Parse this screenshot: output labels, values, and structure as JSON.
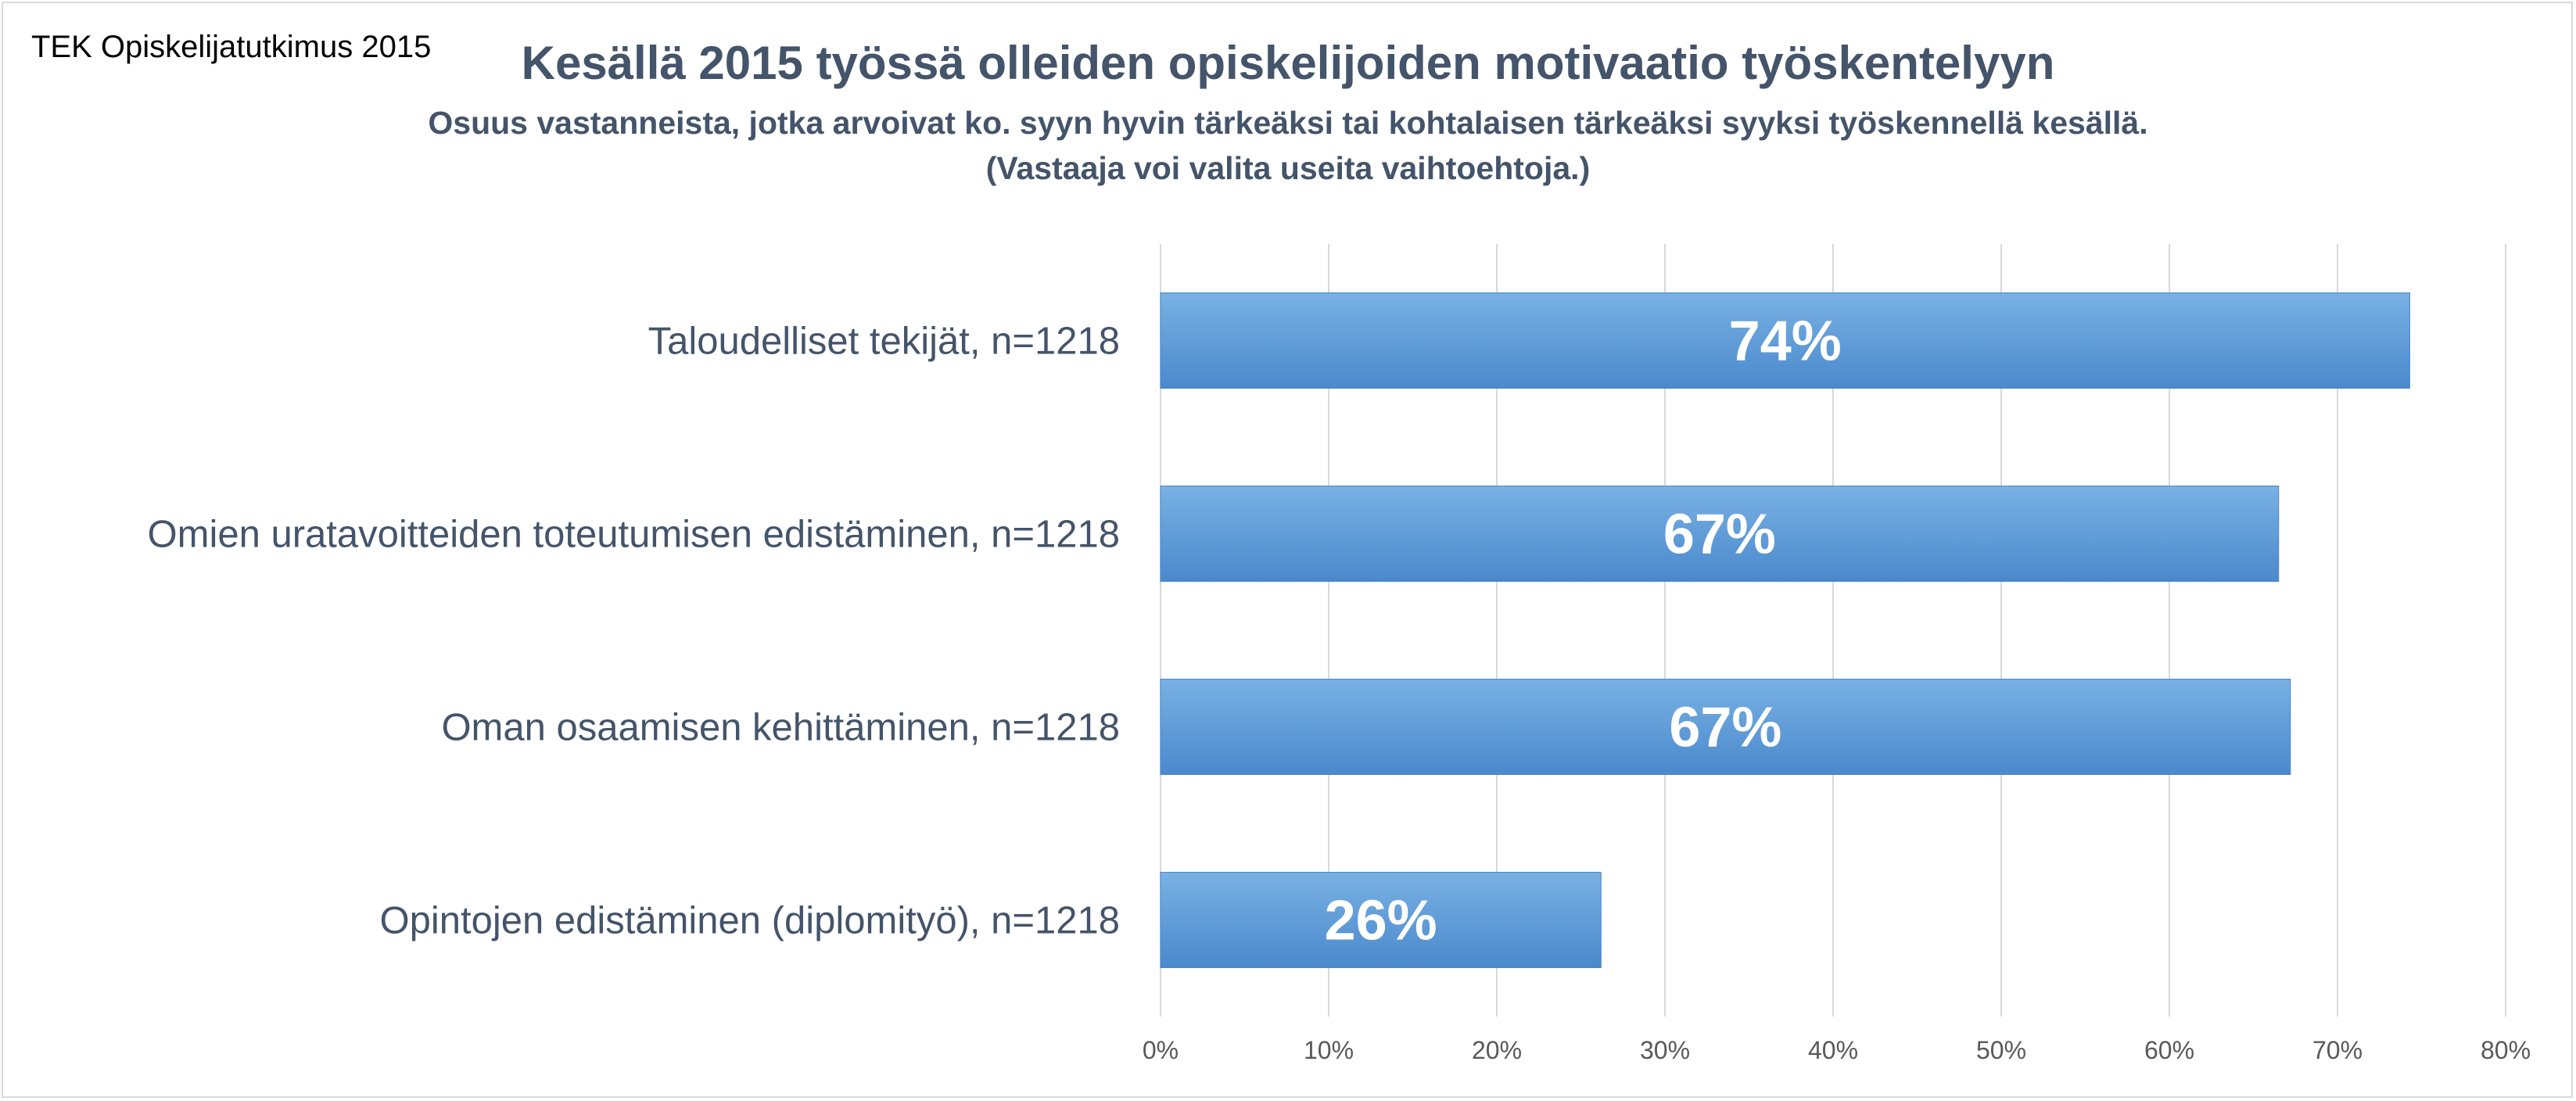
{
  "source_label": "TEK Opiskelijatutkimus 2015",
  "chart_data": {
    "type": "bar",
    "orientation": "horizontal",
    "title": "Kesällä 2015 työssä olleiden opiskelijoiden motivaatio työskentelyyn",
    "subtitle_line1": "Osuus vastanneista, jotka arvoivat ko. syyn hyvin tärkeäksi tai kohtalaisen tärkeäksi syyksi työskennellä kesällä.",
    "subtitle_line2": "(Vastaaja voi valita useita vaihtoehtoja.)",
    "categories": [
      "Taloudelliset tekijät, n=1218",
      "Omien uratavoitteiden toteutumisen edistäminen, n=1218",
      "Oman osaamisen kehittäminen, n=1218",
      "Opintojen edistäminen (diplomityö), n=1218"
    ],
    "values": [
      74.3,
      66.5,
      67.2,
      26.2
    ],
    "data_labels": [
      "74%",
      "67%",
      "67%",
      "26%"
    ],
    "x_ticks": [
      "0%",
      "10%",
      "20%",
      "30%",
      "40%",
      "50%",
      "60%",
      "70%",
      "80%"
    ],
    "xlim": [
      0,
      80
    ],
    "grid": "vertical",
    "legend": "none",
    "bar_color": "#5b9bd5"
  }
}
